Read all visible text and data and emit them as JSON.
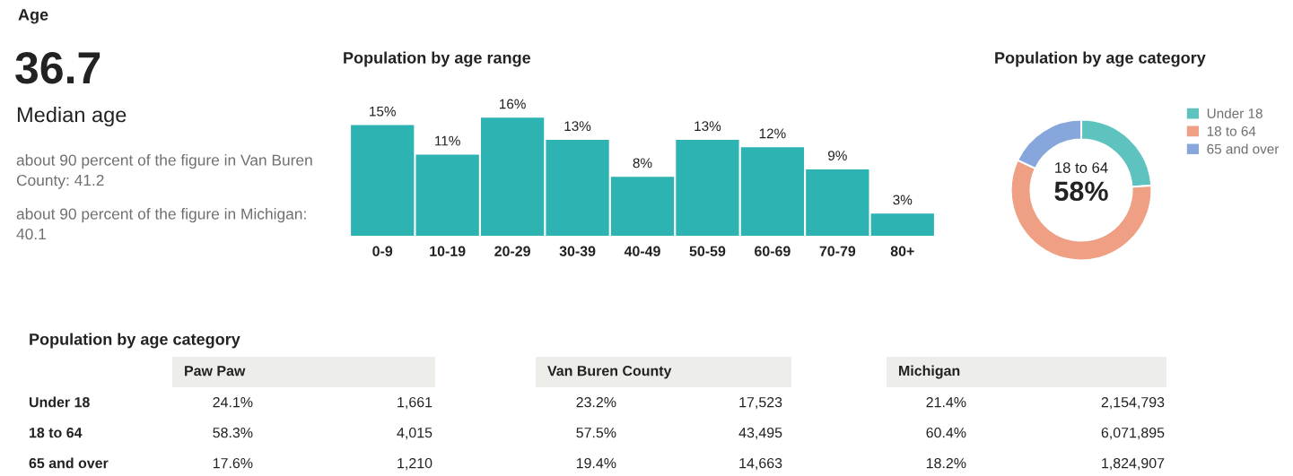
{
  "chart_data": [
    {
      "type": "other",
      "title": "Age",
      "annotations": [
        "36.7",
        "Median age",
        "about 90 percent of the figure in Van Buren County: 41.2",
        "about 90 percent of the figure in Michigan: 40.1"
      ]
    },
    {
      "type": "bar",
      "title": "Population by age range",
      "categories": [
        "0-9",
        "10-19",
        "20-29",
        "30-39",
        "40-49",
        "50-59",
        "60-69",
        "70-79",
        "80+"
      ],
      "values": [
        15,
        11,
        16,
        13,
        8,
        13,
        12,
        9,
        3
      ],
      "value_labels": [
        "15%",
        "11%",
        "16%",
        "13%",
        "8%",
        "13%",
        "12%",
        "9%",
        "3%"
      ],
      "color": "#2eb3b3"
    },
    {
      "type": "donut",
      "title": "Population by age category",
      "categories": [
        "Under 18",
        "18 to 64",
        "65 and over"
      ],
      "values": [
        24,
        58,
        18
      ],
      "colors": [
        "#5ec3bf",
        "#ef9f83",
        "#87a6dc"
      ],
      "legend": "right",
      "annotations": [
        "18 to 64",
        "58%"
      ]
    },
    {
      "type": "other",
      "title": "Population by age category",
      "categories": [
        "Paw Paw",
        "Van Buren County",
        "Michigan"
      ],
      "y_categories": [
        "Under 18",
        "18 to 64",
        "65 and over"
      ],
      "cell_labels": [
        [
          "24.1%",
          "1,661",
          "23.2%",
          "17,523",
          "21.4%",
          "2,154,793"
        ],
        [
          "58.3%",
          "4,015",
          "57.5%",
          "43,495",
          "60.4%",
          "6,071,895"
        ],
        [
          "17.6%",
          "1,210",
          "19.4%",
          "14,663",
          "18.2%",
          "1,824,907"
        ]
      ]
    }
  ]
}
